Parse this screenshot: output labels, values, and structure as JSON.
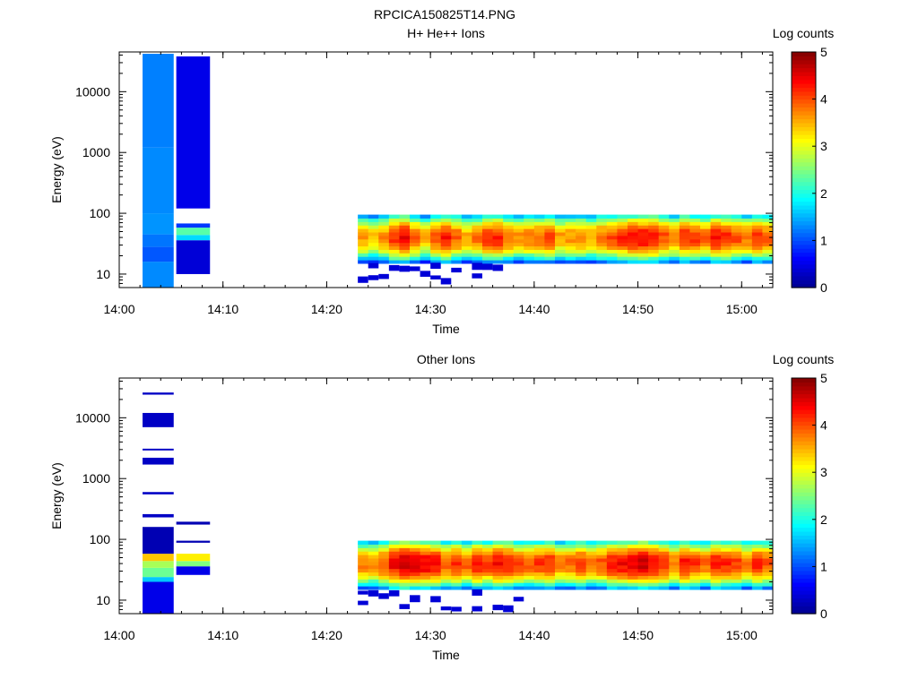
{
  "figure_title": "RPCICA150825T14.PNG",
  "colors": {
    "colormap": [
      "#00008f",
      "#0000ff",
      "#00ffff",
      "#ffff00",
      "#ff0000",
      "#800000"
    ]
  },
  "chart_data": [
    {
      "type": "heatmap",
      "title": "H+ He++ Ions",
      "xlabel": "Time",
      "ylabel": "Energy (eV)",
      "x_range": [
        "14:00",
        "15:03"
      ],
      "x_ticks": [
        "14:00",
        "14:10",
        "14:20",
        "14:30",
        "14:40",
        "14:50",
        "15:00"
      ],
      "y_scale": "log",
      "y_range": [
        6,
        45000
      ],
      "y_ticks": [
        "10",
        "100",
        "1000",
        "10000"
      ],
      "colorbar": {
        "label": "Log counts",
        "range": [
          0,
          5
        ],
        "ticks": [
          "0",
          "1",
          "2",
          "3",
          "4",
          "5"
        ]
      },
      "columns": [
        {
          "t0": "14:02:15",
          "t1": "14:05:15",
          "bands": [
            {
              "e_min": 6,
              "e_max": 16,
              "value": 1.3
            },
            {
              "e_min": 16,
              "e_max": 28,
              "value": 1.05
            },
            {
              "e_min": 28,
              "e_max": 45,
              "value": 1.2
            },
            {
              "e_min": 45,
              "e_max": 100,
              "value": 1.35
            },
            {
              "e_min": 100,
              "e_max": 1200,
              "value": 1.3
            },
            {
              "e_min": 1200,
              "e_max": 42000,
              "value": 1.25
            }
          ]
        },
        {
          "t0": "14:05:30",
          "t1": "14:08:45",
          "bands": [
            {
              "e_min": 10,
              "e_max": 36,
              "value": 0.4
            },
            {
              "e_min": 36,
              "e_max": 44,
              "value": 1.7
            },
            {
              "e_min": 44,
              "e_max": 58,
              "value": 2.3
            },
            {
              "e_min": 58,
              "e_max": 68,
              "value": 0.9
            },
            {
              "e_min": 120,
              "e_max": 38000,
              "value": 0.5
            }
          ]
        }
      ],
      "time_profile": {
        "start": "14:23:00",
        "end": "15:03:00",
        "bin_minutes": 1,
        "peak_log_counts": [
          3.6,
          3.4,
          3.7,
          4.2,
          4.4,
          3.9,
          3.5,
          4.0,
          4.3,
          3.9,
          3.6,
          3.8,
          4.1,
          4.2,
          3.9,
          3.7,
          3.8,
          3.9,
          4.0,
          3.6,
          3.7,
          3.8,
          3.6,
          3.9,
          4.0,
          4.2,
          4.3,
          4.4,
          4.3,
          4.0,
          3.8,
          4.2,
          4.1,
          3.9,
          4.3,
          4.2,
          4.0,
          3.8,
          4.1,
          3.9
        ],
        "core_energy_range_eV": [
          15,
          95
        ]
      }
    },
    {
      "type": "heatmap",
      "title": "Other Ions",
      "xlabel": "Time",
      "ylabel": "Energy (eV)",
      "x_range": [
        "14:00",
        "15:03"
      ],
      "x_ticks": [
        "14:00",
        "14:10",
        "14:20",
        "14:30",
        "14:40",
        "14:50",
        "15:00"
      ],
      "y_scale": "log",
      "y_range": [
        6,
        45000
      ],
      "y_ticks": [
        "10",
        "100",
        "1000",
        "10000"
      ],
      "colorbar": {
        "label": "Log counts",
        "range": [
          0,
          5
        ],
        "ticks": [
          "0",
          "1",
          "2",
          "3",
          "4",
          "5"
        ]
      },
      "columns": [
        {
          "t0": "14:02:15",
          "t1": "14:05:15",
          "bands": [
            {
              "e_min": 6,
              "e_max": 20,
              "value": 0.5
            },
            {
              "e_min": 20,
              "e_max": 24,
              "value": 1.6
            },
            {
              "e_min": 24,
              "e_max": 34,
              "value": 2.4
            },
            {
              "e_min": 34,
              "e_max": 44,
              "value": 2.7
            },
            {
              "e_min": 44,
              "e_max": 58,
              "value": 3.4
            },
            {
              "e_min": 58,
              "e_max": 160,
              "value": 0.2
            },
            {
              "e_min": 230,
              "e_max": 260,
              "value": 0.3
            },
            {
              "e_min": 550,
              "e_max": 600,
              "value": 0.3
            },
            {
              "e_min": 1700,
              "e_max": 2200,
              "value": 0.3
            },
            {
              "e_min": 2900,
              "e_max": 3100,
              "value": 0.3
            },
            {
              "e_min": 7000,
              "e_max": 12000,
              "value": 0.3
            },
            {
              "e_min": 24000,
              "e_max": 26000,
              "value": 0.3
            }
          ]
        },
        {
          "t0": "14:05:30",
          "t1": "14:08:45",
          "bands": [
            {
              "e_min": 26,
              "e_max": 36,
              "value": 0.5
            },
            {
              "e_min": 36,
              "e_max": 44,
              "value": 2.5
            },
            {
              "e_min": 44,
              "e_max": 58,
              "value": 3.2
            },
            {
              "e_min": 88,
              "e_max": 95,
              "value": 0.2
            },
            {
              "e_min": 175,
              "e_max": 195,
              "value": 0.2
            }
          ]
        }
      ],
      "time_profile": {
        "start": "14:23:00",
        "end": "15:03:00",
        "bin_minutes": 1,
        "peak_log_counts": [
          3.8,
          3.7,
          4.0,
          4.4,
          4.7,
          4.6,
          4.5,
          4.4,
          4.0,
          4.2,
          3.9,
          4.3,
          4.1,
          4.4,
          4.3,
          4.0,
          3.9,
          4.1,
          4.2,
          3.8,
          3.9,
          4.1,
          3.8,
          4.0,
          4.3,
          4.4,
          4.5,
          4.6,
          4.4,
          4.2,
          3.8,
          4.3,
          4.1,
          3.9,
          4.3,
          4.2,
          4.1,
          3.8,
          4.2,
          4.0
        ],
        "core_energy_range_eV": [
          15,
          95
        ]
      }
    }
  ]
}
